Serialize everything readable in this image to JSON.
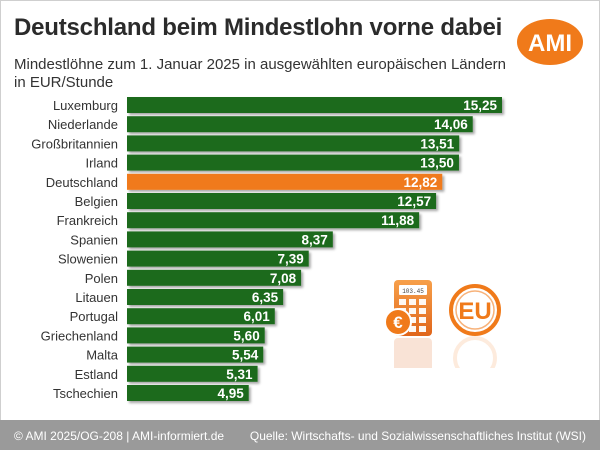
{
  "title": "Deutschland beim Mindestlohn vorne dabei",
  "subtitle": "Mindestlöhne zum 1. Januar 2025 in ausgewählten europäischen Ländern in EUR/Stunde",
  "logo_text": "AMI",
  "footer": {
    "left": "© AMI 2025/OG-208 | AMI-informiert.de",
    "right": "Quelle: Wirtschafts- und Sozialwissenschaftliches Institut (WSI)"
  },
  "icons": {
    "calculator_display": "103.45",
    "euro_symbol": "€",
    "eu_label": "EU"
  },
  "colors": {
    "bar": "#1e6b1e",
    "highlight": "#f07a1a",
    "logo": "#f07a1a",
    "footer": "#9a9a9a"
  },
  "chart_data": {
    "type": "bar",
    "orientation": "horizontal",
    "categories": [
      "Luxemburg",
      "Niederlande",
      "Großbritannien",
      "Irland",
      "Deutschland",
      "Belgien",
      "Frankreich",
      "Spanien",
      "Slowenien",
      "Polen",
      "Litauen",
      "Portugal",
      "Griechenland",
      "Malta",
      "Estland",
      "Tschechien"
    ],
    "values": [
      15.25,
      14.06,
      13.51,
      13.5,
      12.82,
      12.57,
      11.88,
      8.37,
      7.39,
      7.08,
      6.35,
      6.01,
      5.6,
      5.54,
      5.31,
      4.95
    ],
    "value_labels": [
      "15,25",
      "14,06",
      "13,51",
      "13,50",
      "12,82",
      "12,57",
      "11,88",
      "8,37",
      "7,39",
      "7,08",
      "6,35",
      "6,01",
      "5,60",
      "5,54",
      "5,31",
      "4,95"
    ],
    "highlight": "Deutschland",
    "xlim": [
      0,
      15.25
    ],
    "grid": false
  }
}
